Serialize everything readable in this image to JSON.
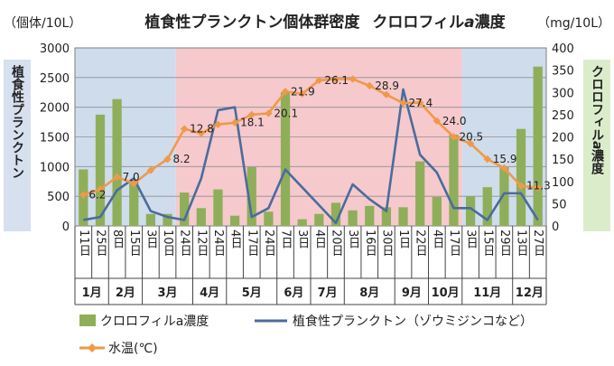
{
  "chart_data": {
    "type": "bar",
    "title": "植食性プランクトン個体群密度　クロロフィルa濃度",
    "title_main": "植食性プランクトン個体群密度",
    "title_chl": "クロロフィル",
    "title_a": "a",
    "title_conc": "濃度",
    "left_unit": "（個体/10L）",
    "right_unit": "（mg/10L）",
    "ylabel_left": "植食性プランクトン",
    "ylabel_right_chl": "クロロフィル",
    "ylabel_right_a": "a",
    "ylabel_right_conc": "濃度",
    "ylim_left": [
      0,
      3000
    ],
    "yticks_left": [
      "0",
      "500",
      "1000",
      "1500",
      "2000",
      "2500",
      "3000"
    ],
    "ylim_right": [
      0,
      400
    ],
    "yticks_right": [
      "0",
      "50",
      "100",
      "150",
      "200",
      "250",
      "300",
      "350",
      "400"
    ],
    "categories": [
      "11日",
      "25日",
      "8日",
      "15日",
      "3日",
      "10日",
      "24日",
      "12日",
      "24日",
      "4日",
      "17日",
      "24日",
      "7日",
      "3日",
      "4日",
      "20日",
      "3日",
      "16日",
      "30日",
      "1日",
      "22日",
      "4日",
      "17日",
      "3日",
      "15日",
      "29日",
      "13日",
      "27日"
    ],
    "months": [
      {
        "label": "1月",
        "start": 0,
        "count": 2
      },
      {
        "label": "2月",
        "start": 2,
        "count": 2
      },
      {
        "label": "3月",
        "start": 4,
        "count": 3
      },
      {
        "label": "4月",
        "start": 7,
        "count": 2
      },
      {
        "label": "5月",
        "start": 9,
        "count": 3
      },
      {
        "label": "6月",
        "start": 12,
        "count": 2
      },
      {
        "label": "7月",
        "start": 14,
        "count": 2
      },
      {
        "label": "8月",
        "start": 16,
        "count": 3
      },
      {
        "label": "9月",
        "start": 19,
        "count": 2
      },
      {
        "label": "10月",
        "start": 21,
        "count": 2
      },
      {
        "label": "11月",
        "start": 23,
        "count": 3
      },
      {
        "label": "12月",
        "start": 26,
        "count": 2
      }
    ],
    "bands": [
      {
        "start": 0,
        "end": 6,
        "color": "#cfdcec"
      },
      {
        "start": 6,
        "end": 23,
        "color": "#f6c9cd"
      },
      {
        "start": 23,
        "end": 28,
        "color": "#cfdcec"
      }
    ],
    "series": [
      {
        "name": "クロロフィルa濃度",
        "kind": "bar",
        "axis": "right",
        "color": "#8fae5a",
        "values": [
          127,
          250,
          285,
          102,
          27,
          27,
          75,
          40,
          82,
          23,
          132,
          32,
          300,
          15,
          27,
          52,
          35,
          45,
          42,
          42,
          145,
          65,
          205,
          67,
          87,
          132,
          218,
          358
        ]
      },
      {
        "name": "植食性プランクトン（ゾウミジンコなど）",
        "kind": "line",
        "axis": "left",
        "color": "#4a6c9b",
        "values": [
          100,
          150,
          600,
          800,
          250,
          150,
          100,
          800,
          1950,
          2000,
          150,
          300,
          950,
          650,
          350,
          50,
          700,
          450,
          250,
          2300,
          1200,
          900,
          300,
          300,
          100,
          550,
          550,
          100
        ]
      },
      {
        "name": "水温(℃)",
        "kind": "line",
        "axis": "right",
        "color": "#f0994a",
        "values": [
          70,
          82,
          110,
          95,
          125,
          150,
          218,
          208,
          228,
          232,
          250,
          253,
          302,
          297,
          327,
          330,
          330,
          315,
          295,
          276,
          277,
          236,
          200,
          185,
          150,
          130,
          90,
          86
        ],
        "labels": [
          {
            "index": 0,
            "text": "6.2"
          },
          {
            "index": 2,
            "text": "7.0"
          },
          {
            "index": 5,
            "text": "8.2"
          },
          {
            "index": 6,
            "text": "12.8"
          },
          {
            "index": 9,
            "text": "18.1"
          },
          {
            "index": 11,
            "text": "20.1"
          },
          {
            "index": 12,
            "text": "21.9"
          },
          {
            "index": 14,
            "text": "26.1"
          },
          {
            "index": 17,
            "text": "28.9"
          },
          {
            "index": 19,
            "text": "27.4"
          },
          {
            "index": 21,
            "text": "24.0"
          },
          {
            "index": 22,
            "text": "20.5"
          },
          {
            "index": 24,
            "text": "15.9"
          },
          {
            "index": 26,
            "text": "11.3"
          }
        ]
      }
    ],
    "legend": {
      "placement": "bottom",
      "items": [
        "クロロフィルa濃度",
        "植食性プランクトン（ゾウミジンコなど）",
        "水温(℃)"
      ]
    },
    "grid": true
  }
}
